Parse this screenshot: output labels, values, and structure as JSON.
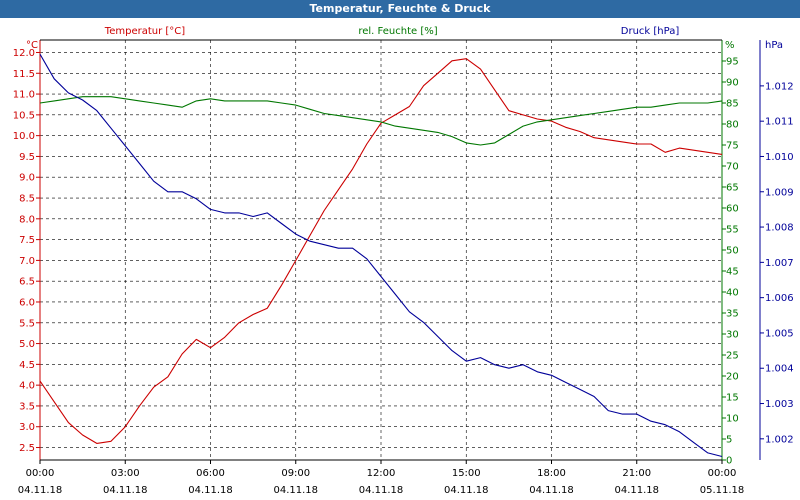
{
  "window": {
    "title": "Temperatur, Feuchte & Druck"
  },
  "colors": {
    "temperature": "#cc0000",
    "humidity": "#007700",
    "pressure": "#000099",
    "titlebar": "#2e6aa3"
  },
  "chart_data": {
    "type": "line",
    "title": "Temperatur, Feuchte & Druck",
    "legend": {
      "temperature": "Temperatur [°C]",
      "humidity": "rel. Feuchte [%]",
      "pressure": "Druck [hPa]"
    },
    "axes": {
      "left": {
        "unit": "°C",
        "range": [
          2.2,
          12.3
        ],
        "ticks": [
          "12.0",
          "11.5",
          "11.0",
          "10.5",
          "10.0",
          "9.5",
          "9.0",
          "8.5",
          "8.0",
          "7.5",
          "7.0",
          "6.5",
          "6.0",
          "5.5",
          "5.0",
          "4.5",
          "4.0",
          "3.5",
          "3.0",
          "2.5"
        ]
      },
      "middle": {
        "unit": "%",
        "range": [
          0,
          100
        ],
        "ticks": [
          "95",
          "90",
          "85",
          "80",
          "75",
          "70",
          "65",
          "60",
          "55",
          "50",
          "45",
          "40",
          "35",
          "30",
          "25",
          "20",
          "15",
          "10",
          "5",
          "0"
        ]
      },
      "right": {
        "unit": "hPa",
        "range": [
          1.0014,
          1.0133
        ],
        "ticks": [
          "1.012",
          "1.011",
          "1.010",
          "1.009",
          "1.008",
          "1.007",
          "1.006",
          "1.005",
          "1.004",
          "1.003",
          "1.002"
        ]
      }
    },
    "x_ticks": [
      {
        "time": "00:00",
        "date": "04.11.18"
      },
      {
        "time": "03:00",
        "date": "04.11.18"
      },
      {
        "time": "06:00",
        "date": "04.11.18"
      },
      {
        "time": "09:00",
        "date": "04.11.18"
      },
      {
        "time": "12:00",
        "date": "04.11.18"
      },
      {
        "time": "15:00",
        "date": "04.11.18"
      },
      {
        "time": "18:00",
        "date": "04.11.18"
      },
      {
        "time": "21:00",
        "date": "04.11.18"
      },
      {
        "time": "00:00",
        "date": "05.11.18"
      }
    ],
    "x_hours": [
      0,
      0.5,
      1,
      1.5,
      2,
      2.5,
      3,
      3.5,
      4,
      4.5,
      5,
      5.5,
      6,
      6.5,
      7,
      7.5,
      8,
      8.5,
      9,
      9.5,
      10,
      10.5,
      11,
      11.5,
      12,
      12.5,
      13,
      13.5,
      14,
      14.5,
      15,
      15.5,
      16,
      16.5,
      17,
      17.5,
      18,
      18.5,
      19,
      19.5,
      20,
      20.5,
      21,
      21.5,
      22,
      22.5,
      23,
      23.5,
      24
    ],
    "series": [
      {
        "name": "Temperatur [°C]",
        "axis": "left",
        "values": [
          4.1,
          3.6,
          3.1,
          2.8,
          2.6,
          2.65,
          3.0,
          3.5,
          3.95,
          4.2,
          4.75,
          5.1,
          4.9,
          5.15,
          5.5,
          5.7,
          5.85,
          6.4,
          7.0,
          7.6,
          8.2,
          8.7,
          9.2,
          9.8,
          10.3,
          10.5,
          10.7,
          11.2,
          11.5,
          11.8,
          11.85,
          11.6,
          11.1,
          10.6,
          10.5,
          10.4,
          10.35,
          10.2,
          10.1,
          9.95,
          9.9,
          9.85,
          9.8,
          9.8,
          9.6,
          9.7,
          9.65,
          9.6,
          9.55
        ]
      },
      {
        "name": "rel. Feuchte [%]",
        "axis": "middle",
        "values": [
          85,
          85.5,
          86,
          86.5,
          86.5,
          86.5,
          86,
          85.5,
          85,
          84.5,
          84,
          85.5,
          86,
          85.5,
          85.5,
          85.5,
          85.5,
          85,
          84.5,
          83.5,
          82.5,
          82,
          81.5,
          81,
          80.5,
          79.5,
          79,
          78.5,
          78,
          77,
          75.5,
          75,
          75.5,
          77.5,
          79.5,
          80.5,
          81,
          81.5,
          82,
          82.5,
          83,
          83.5,
          84,
          84,
          84.5,
          85,
          85,
          85,
          85.5
        ]
      },
      {
        "name": "Druck [hPa]",
        "axis": "right",
        "values": [
          1.0129,
          1.0122,
          1.0118,
          1.0116,
          1.0113,
          1.0108,
          1.0103,
          1.0098,
          1.0093,
          1.009,
          1.009,
          1.0088,
          1.0085,
          1.0084,
          1.0084,
          1.0083,
          1.0084,
          1.0081,
          1.0078,
          1.0076,
          1.0075,
          1.0074,
          1.0074,
          1.0071,
          1.0066,
          1.0061,
          1.0056,
          1.0053,
          1.0049,
          1.0045,
          1.0042,
          1.0043,
          1.0041,
          1.004,
          1.0041,
          1.0039,
          1.0038,
          1.0036,
          1.0034,
          1.0032,
          1.0028,
          1.0027,
          1.0027,
          1.0025,
          1.0024,
          1.0022,
          1.0019,
          1.0016,
          1.0015
        ]
      }
    ]
  }
}
